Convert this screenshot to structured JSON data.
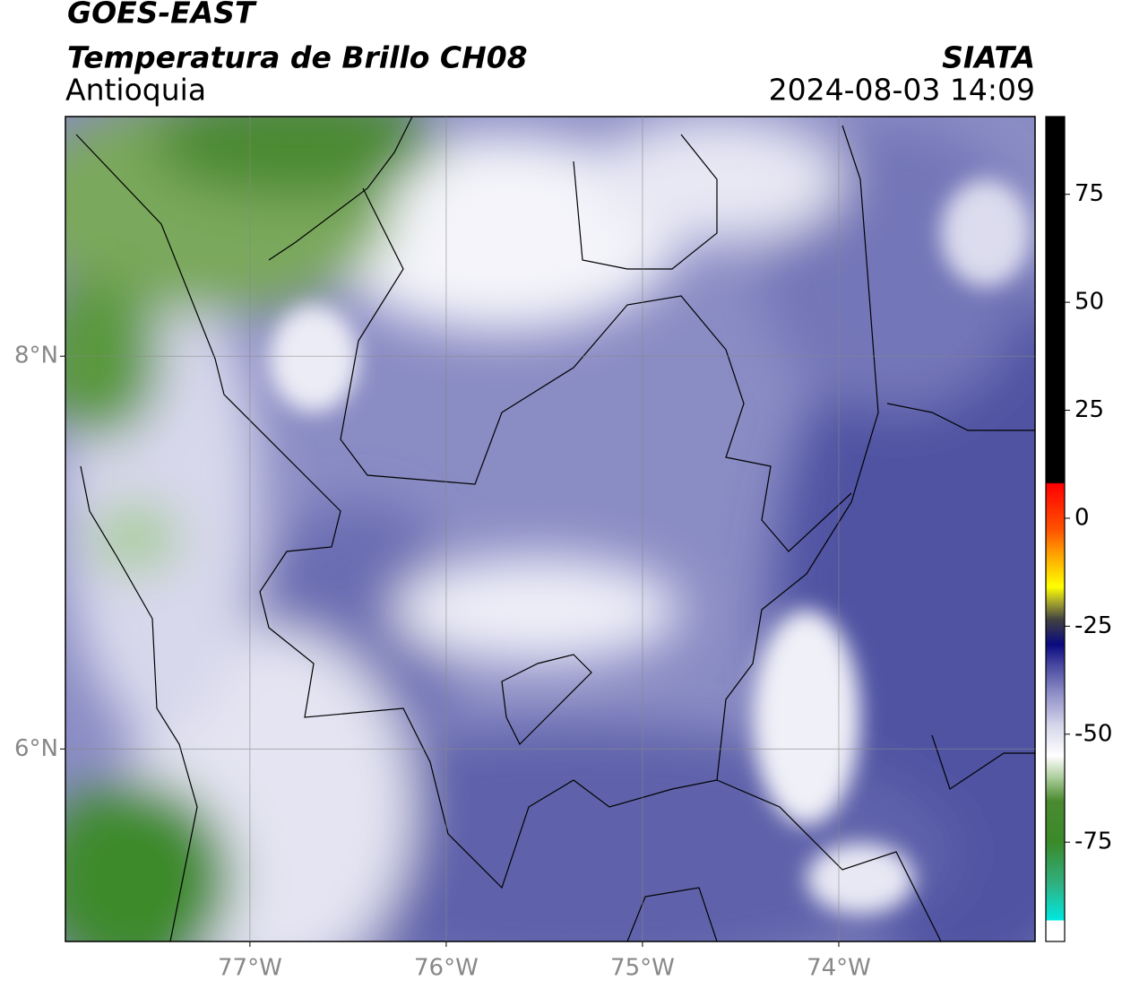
{
  "header": {
    "title": "GOES-EAST",
    "subtitle": "Temperatura de Brillo CH08",
    "region": "Antioquia",
    "source": "SIATA",
    "datetime": "2024-08-03 14:09"
  },
  "map": {
    "xlim": [
      -77.94,
      -73.0
    ],
    "ylim": [
      5.02,
      9.22
    ],
    "xticks": [
      {
        "value": -77,
        "label": "77°W"
      },
      {
        "value": -76,
        "label": "76°W"
      },
      {
        "value": -75,
        "label": "75°W"
      },
      {
        "value": -74,
        "label": "74°W"
      }
    ],
    "yticks": [
      {
        "value": 8,
        "label": "8°N"
      },
      {
        "value": 6,
        "label": "6°N"
      }
    ],
    "grid": true
  },
  "colorbar": {
    "lim": [
      -98,
      93
    ],
    "ticks": [
      75,
      50,
      25,
      0,
      -25,
      -50,
      -75
    ]
  }
}
